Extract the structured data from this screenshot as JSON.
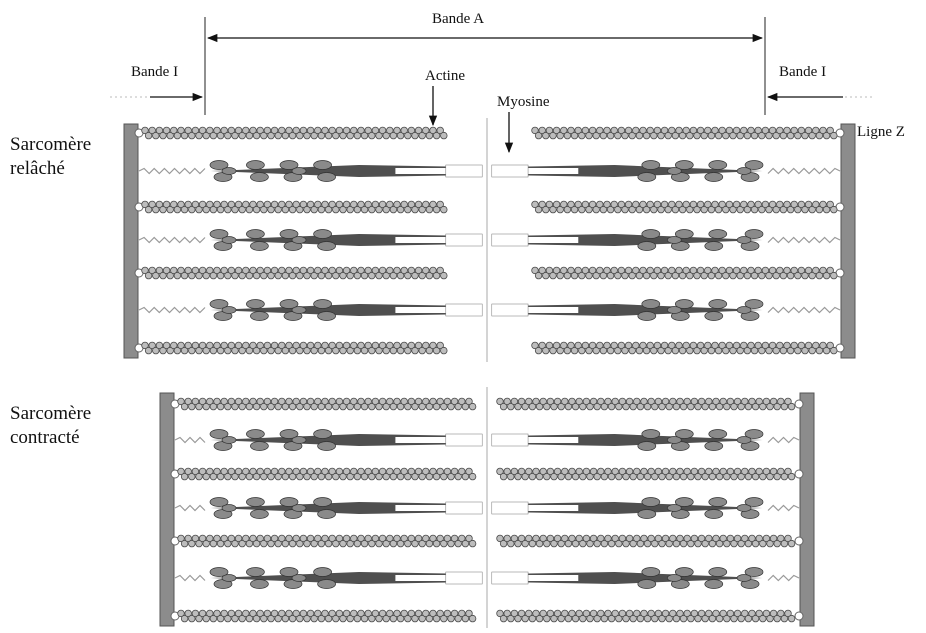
{
  "labels": {
    "band_a": "Bande A",
    "band_i_left": "Bande I",
    "band_i_right": "Bande I",
    "actin": "Actine",
    "myosin": "Myosine",
    "z_line": "Ligne Z",
    "relaxed_line1": "Sarcomère",
    "relaxed_line2": "relâché",
    "contracted_line1": "Sarcomère",
    "contracted_line2": "contracté"
  },
  "colors": {
    "z_disc": "#8c8c8c",
    "actin_bead_fill": "#bdbdbd",
    "actin_bead_stroke": "#4a4a4a",
    "myosin_shaft": "#4f4f4f",
    "myosin_head": "#8a8a8a",
    "myosin_bare_zone": "#ffffff",
    "titin": "#9a9a9a",
    "arrow": "#111111"
  },
  "diagram": {
    "sarcomeres": [
      {
        "state": "relaxed",
        "actin_filaments_per_side": 4,
        "myosin_filaments": 3
      },
      {
        "state": "contracted",
        "actin_filaments_per_side": 4,
        "myosin_filaments": 3
      }
    ]
  }
}
